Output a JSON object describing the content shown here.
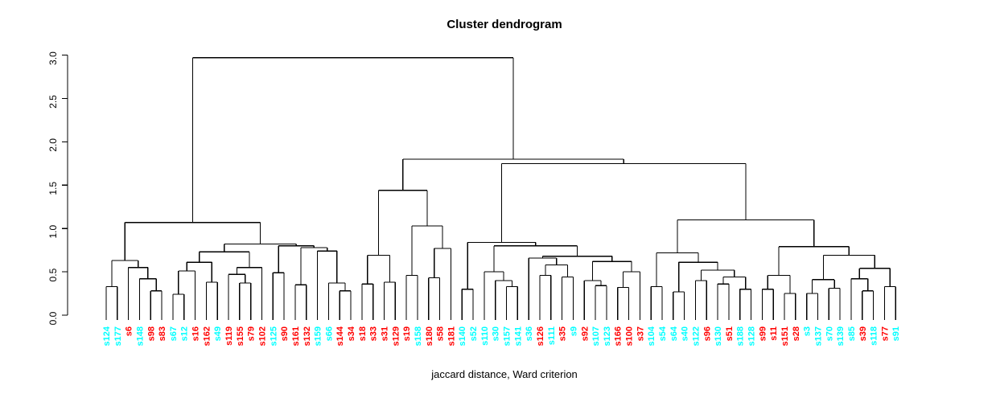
{
  "chart": {
    "title": "Cluster dendrogram",
    "xlabel": "jaccard distance, Ward criterion"
  },
  "chart_data": {
    "type": "dendrogram",
    "title": "Cluster dendrogram",
    "xlabel": "jaccard distance, Ward criterion",
    "ylabel": "",
    "ylim": [
      0.0,
      3.0
    ],
    "yticks": [
      "0.0",
      "0.5",
      "1.0",
      "1.5",
      "2.0",
      "2.5",
      "3.0"
    ],
    "grid": false,
    "legend": false,
    "colors": {
      "c": "#00ffff",
      "r": "#ff0000"
    },
    "leaves": [
      [
        "s124",
        "c"
      ],
      [
        "s177",
        "c"
      ],
      [
        "s6",
        "r"
      ],
      [
        "s148",
        "c"
      ],
      [
        "s98",
        "r"
      ],
      [
        "s83",
        "r"
      ],
      [
        "s67",
        "c"
      ],
      [
        "s12",
        "c"
      ],
      [
        "s16",
        "r"
      ],
      [
        "s162",
        "r"
      ],
      [
        "s49",
        "c"
      ],
      [
        "s119",
        "r"
      ],
      [
        "s155",
        "r"
      ],
      [
        "s79",
        "r"
      ],
      [
        "s102",
        "r"
      ],
      [
        "s125",
        "c"
      ],
      [
        "s90",
        "r"
      ],
      [
        "s161",
        "r"
      ],
      [
        "s132",
        "r"
      ],
      [
        "s159",
        "c"
      ],
      [
        "s66",
        "c"
      ],
      [
        "s144",
        "r"
      ],
      [
        "s34",
        "r"
      ],
      [
        "s18",
        "r"
      ],
      [
        "s33",
        "r"
      ],
      [
        "s31",
        "r"
      ],
      [
        "s129",
        "r"
      ],
      [
        "s19",
        "r"
      ],
      [
        "s158",
        "c"
      ],
      [
        "s180",
        "r"
      ],
      [
        "s58",
        "r"
      ],
      [
        "s181",
        "r"
      ],
      [
        "s140",
        "c"
      ],
      [
        "s52",
        "c"
      ],
      [
        "s110",
        "c"
      ],
      [
        "s30",
        "c"
      ],
      [
        "s157",
        "c"
      ],
      [
        "s141",
        "c"
      ],
      [
        "s36",
        "c"
      ],
      [
        "s126",
        "r"
      ],
      [
        "s111",
        "c"
      ],
      [
        "s35",
        "r"
      ],
      [
        "s9",
        "c"
      ],
      [
        "s92",
        "r"
      ],
      [
        "s107",
        "c"
      ],
      [
        "s123",
        "c"
      ],
      [
        "s166",
        "r"
      ],
      [
        "s100",
        "r"
      ],
      [
        "s37",
        "r"
      ],
      [
        "s104",
        "c"
      ],
      [
        "s54",
        "c"
      ],
      [
        "s64",
        "c"
      ],
      [
        "s40",
        "c"
      ],
      [
        "s122",
        "c"
      ],
      [
        "s96",
        "r"
      ],
      [
        "s130",
        "c"
      ],
      [
        "s51",
        "r"
      ],
      [
        "s188",
        "c"
      ],
      [
        "s128",
        "c"
      ],
      [
        "s99",
        "r"
      ],
      [
        "s11",
        "r"
      ],
      [
        "s151",
        "r"
      ],
      [
        "s28",
        "r"
      ],
      [
        "s3",
        "c"
      ],
      [
        "s137",
        "c"
      ],
      [
        "s70",
        "c"
      ],
      [
        "s139",
        "c"
      ],
      [
        "s85",
        "c"
      ],
      [
        "s39",
        "r"
      ],
      [
        "s118",
        "c"
      ],
      [
        "s77",
        "r"
      ],
      [
        "s91",
        "c"
      ]
    ],
    "tree": [
      2.97,
      [
        1.07,
        [
          0.63,
          [
            0.33,
            "s124",
            "s177"
          ],
          [
            0.55,
            "s6",
            [
              0.42,
              "s148",
              [
                0.28,
                "s98",
                "s83"
              ]
            ]
          ]
        ],
        [
          0.82,
          [
            0.73,
            [
              0.61,
              [
                0.51,
                [
                  0.24,
                  "s67",
                  "s12"
                ],
                "s16"
              ],
              [
                0.38,
                "s162",
                "s49"
              ]
            ],
            [
              0.55,
              [
                0.47,
                "s119",
                [
                  0.37,
                  "s155",
                  "s79"
                ]
              ],
              "s102"
            ]
          ],
          [
            0.8,
            [
              0.49,
              "s125",
              "s90"
            ],
            [
              0.78,
              [
                0.35,
                "s161",
                "s132"
              ],
              [
                0.74,
                "s159",
                [
                  0.37,
                  "s66",
                  [
                    0.28,
                    "s144",
                    "s34"
                  ]
                ]
              ]
            ]
          ]
        ]
      ],
      [
        1.8,
        [
          1.44,
          [
            0.69,
            [
              0.36,
              "s18",
              "s33"
            ],
            [
              0.38,
              "s31",
              "s129"
            ]
          ],
          [
            1.03,
            [
              0.46,
              "s19",
              "s158"
            ],
            [
              0.77,
              [
                0.43,
                "s180",
                "s58"
              ],
              "s181"
            ]
          ]
        ],
        [
          1.75,
          [
            0.84,
            [
              0.3,
              "s140",
              "s52"
            ],
            [
              0.8,
              [
                0.5,
                "s110",
                [
                  0.4,
                  "s30",
                  [
                    0.33,
                    "s157",
                    "s141"
                  ]
                ]
              ],
              [
                0.68,
                [
                  0.66,
                  "s36",
                  [
                    0.58,
                    [
                      0.46,
                      "s126",
                      "s111"
                    ],
                    [
                      0.44,
                      "s35",
                      "s9"
                    ]
                  ]
                ],
                [
                  0.62,
                  [
                    0.4,
                    "s92",
                    [
                      0.34,
                      "s107",
                      "s123"
                    ]
                  ],
                  [
                    0.5,
                    [
                      0.32,
                      "s166",
                      "s100"
                    ],
                    "s37"
                  ]
                ]
              ]
            ]
          ],
          [
            1.1,
            [
              0.72,
              [
                0.33,
                "s104",
                "s54"
              ],
              [
                0.61,
                [
                  0.27,
                  "s64",
                  "s40"
                ],
                [
                  0.52,
                  [
                    0.4,
                    "s122",
                    "s96"
                  ],
                  [
                    0.44,
                    [
                      0.36,
                      "s130",
                      "s51"
                    ],
                    [
                      0.3,
                      "s188",
                      "s128"
                    ]
                  ]
                ]
              ]
            ],
            [
              0.79,
              [
                0.46,
                [
                  0.3,
                  "s99",
                  "s11"
                ],
                [
                  0.25,
                  "s151",
                  "s28"
                ]
              ],
              [
                0.69,
                [
                  0.41,
                  [
                    0.25,
                    "s3",
                    "s137"
                  ],
                  [
                    0.31,
                    "s70",
                    "s139"
                  ]
                ],
                [
                  0.54,
                  [
                    0.42,
                    "s85",
                    [
                      0.28,
                      "s39",
                      "s118"
                    ]
                  ],
                  [
                    0.33,
                    "s77",
                    "s91"
                  ]
                ]
              ]
            ]
          ]
        ]
      ]
    ]
  }
}
